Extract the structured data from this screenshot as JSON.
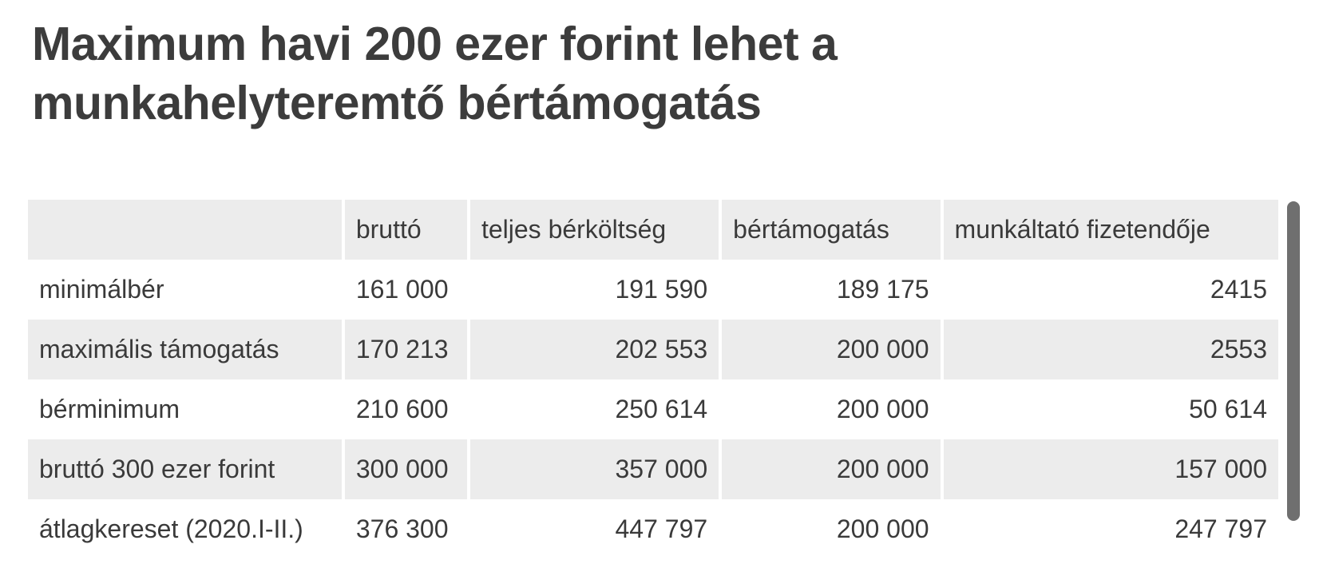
{
  "title": "Maximum havi 200 ezer forint lehet a munkahelyteremtő bértámogatás",
  "table": {
    "headers": [
      "",
      "bruttó",
      "teljes bérköltség",
      "bértámogatás",
      "munkáltató fizetendője"
    ],
    "rows": [
      [
        "minimálbér",
        "161 000",
        "191 590",
        "189 175",
        "2415"
      ],
      [
        "maximális támogatás",
        "170 213",
        "202 553",
        "200 000",
        "2553"
      ],
      [
        "bérminimum",
        "210 600",
        "250 614",
        "200 000",
        "50 614"
      ],
      [
        "bruttó 300 ezer forint",
        "300 000",
        "357 000",
        "200 000",
        "157 000"
      ],
      [
        "átlagkereset (2020.I-II.)",
        "376 300",
        "447 797",
        "200 000",
        "247 797"
      ]
    ]
  }
}
